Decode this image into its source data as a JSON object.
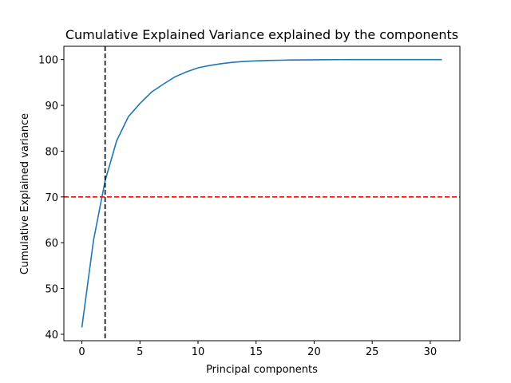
{
  "chart_data": {
    "type": "line",
    "title": "Cumulative Explained Variance explained by the components",
    "xlabel": "Principal components",
    "ylabel": "Cumulative Explained variance",
    "xlim": [
      -1.55,
      32.55
    ],
    "ylim": [
      38.6,
      102.9
    ],
    "xticks": [
      0,
      5,
      10,
      15,
      20,
      25,
      30
    ],
    "yticks": [
      40,
      50,
      60,
      70,
      80,
      90,
      100
    ],
    "grid": false,
    "series": [
      {
        "color": "#1f77b4",
        "x": [
          0,
          1,
          2,
          3,
          4,
          5,
          6,
          7,
          8,
          9,
          10,
          11,
          12,
          13,
          14,
          15,
          16,
          17,
          18,
          19,
          20,
          21,
          22,
          23,
          24,
          25,
          26,
          27,
          28,
          29,
          30,
          31
        ],
        "values": [
          41.5,
          60.5,
          73.5,
          82.3,
          87.5,
          90.4,
          92.9,
          94.6,
          96.2,
          97.3,
          98.2,
          98.7,
          99.1,
          99.4,
          99.6,
          99.7,
          99.8,
          99.85,
          99.9,
          99.93,
          99.95,
          99.97,
          99.98,
          99.99,
          99.99,
          100,
          100,
          100,
          100,
          100,
          100,
          100
        ]
      }
    ],
    "reference_lines": [
      {
        "orientation": "horizontal",
        "value": 70,
        "color": "#ff0000",
        "style": "dashed"
      },
      {
        "orientation": "vertical",
        "value": 2,
        "color": "#000000",
        "style": "dashed"
      }
    ]
  }
}
